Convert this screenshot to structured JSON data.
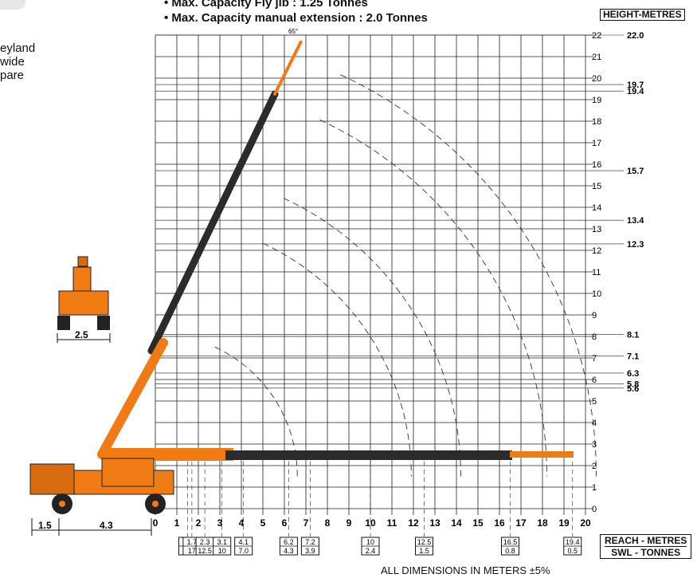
{
  "header": {
    "bullets": [
      "• Max. Capacity Fly jib : 1.25 Tonnes",
      "• Max. Capacity manual extension : 2.0 Tonnes"
    ],
    "side_text": [
      "eyland",
      "wide",
      "pare"
    ],
    "height_label": "HEIGHT-METRES",
    "reach_label": "REACH - METRES",
    "swl_label": "SWL - TONNES",
    "note": "ALL DIMENSIONS IN METERS ±5%",
    "angle_label": "65°"
  },
  "height_axis": [
    "0",
    "1",
    "2",
    "3",
    "4",
    "5",
    "6",
    "7",
    "8",
    "9",
    "10",
    "11",
    "12",
    "13",
    "14",
    "15",
    "16",
    "17",
    "18",
    "19",
    "20",
    "21",
    "22"
  ],
  "reach_axis": [
    "0",
    "1",
    "2",
    "3",
    "4",
    "5",
    "6",
    "7",
    "8",
    "9",
    "10",
    "11",
    "12",
    "13",
    "14",
    "15",
    "16",
    "17",
    "18",
    "19",
    "20"
  ],
  "height_marks": [
    "22.0",
    "19.7",
    "19.4",
    "15.7",
    "13.4",
    "12.3",
    "8.1",
    "7.1",
    "6.3",
    "5.8",
    "5.6"
  ],
  "capacity_boxes": [
    {
      "reach": "1.5",
      "swl": "20"
    },
    {
      "reach": "1.7",
      "swl": "17"
    },
    {
      "reach": "2.3",
      "swl": "12.5"
    },
    {
      "reach": "3.1",
      "swl": "10"
    },
    {
      "reach": "4.1",
      "swl": "7.0"
    },
    {
      "reach": "6.2",
      "swl": "4.3"
    },
    {
      "reach": "7.2",
      "swl": "3.9"
    },
    {
      "reach": "10",
      "swl": "2.4"
    },
    {
      "reach": "12.5",
      "swl": "1.5"
    },
    {
      "reach": "16.5",
      "swl": "0.8"
    },
    {
      "reach": "19.4",
      "swl": "0.5"
    }
  ],
  "dimensions": {
    "rear_overhang": "1.5",
    "wheelbase": "4.3",
    "track_width": "2.5"
  },
  "colors": {
    "crane": "#f07a14",
    "boom": "#2b2b2b",
    "grid": "#222222"
  }
}
